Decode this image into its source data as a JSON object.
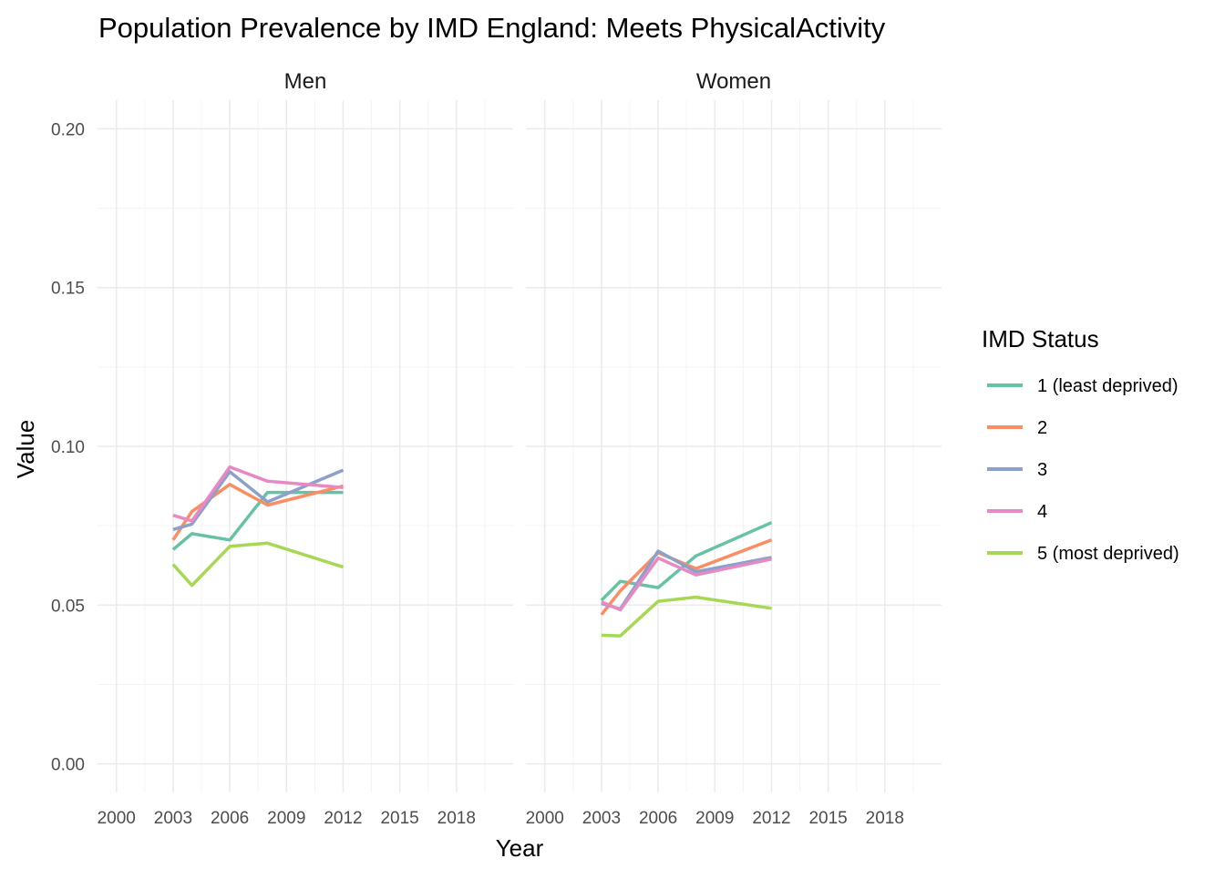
{
  "chart_data": {
    "type": "line",
    "title": "Population Prevalence by IMD England: Meets PhysicalActivity",
    "xlabel": "Year",
    "ylabel": "Value",
    "xlim": [
      1999,
      2021
    ],
    "ylim": [
      -0.009,
      0.209
    ],
    "x_ticks": [
      "2000",
      "2003",
      "2006",
      "2009",
      "2012",
      "2015",
      "2018"
    ],
    "y_ticks": [
      "0.00",
      "0.05",
      "0.10",
      "0.15",
      "0.20"
    ],
    "grid": true,
    "legend": {
      "title": "IMD Status",
      "position": "right",
      "entries": [
        "1 (least deprived)",
        "2",
        "3",
        "4",
        "5 (most deprived)"
      ]
    },
    "colors": [
      "#66c2a5",
      "#fc8d62",
      "#8da0cb",
      "#e78ac3",
      "#a6d854"
    ],
    "x": [
      2003,
      2004,
      2006,
      2008,
      2012
    ],
    "panels": [
      {
        "label": "Men",
        "series": [
          {
            "name": "1 (least deprived)",
            "values": [
              0.0675,
              0.0725,
              0.0705,
              0.0855,
              0.0855
            ]
          },
          {
            "name": "2",
            "values": [
              0.0705,
              0.0795,
              0.088,
              0.0815,
              0.0875
            ]
          },
          {
            "name": "3",
            "values": [
              0.0738,
              0.0755,
              0.092,
              0.0825,
              0.0925
            ]
          },
          {
            "name": "4",
            "values": [
              0.0783,
              0.0765,
              0.0935,
              0.089,
              0.087
            ]
          },
          {
            "name": "5 (most deprived)",
            "values": [
              0.0628,
              0.0562,
              0.0685,
              0.0695,
              0.062
            ]
          }
        ]
      },
      {
        "label": "Women",
        "series": [
          {
            "name": "1 (least deprived)",
            "values": [
              0.0515,
              0.0575,
              0.0555,
              0.0655,
              0.076
            ]
          },
          {
            "name": "2",
            "values": [
              0.047,
              0.0545,
              0.0665,
              0.0615,
              0.0705
            ]
          },
          {
            "name": "3",
            "values": [
              0.0505,
              0.0488,
              0.067,
              0.0605,
              0.065
            ]
          },
          {
            "name": "4",
            "values": [
              0.051,
              0.0485,
              0.0648,
              0.0595,
              0.0645
            ]
          },
          {
            "name": "5 (most deprived)",
            "values": [
              0.0405,
              0.0403,
              0.0512,
              0.0525,
              0.049
            ]
          }
        ]
      }
    ]
  }
}
